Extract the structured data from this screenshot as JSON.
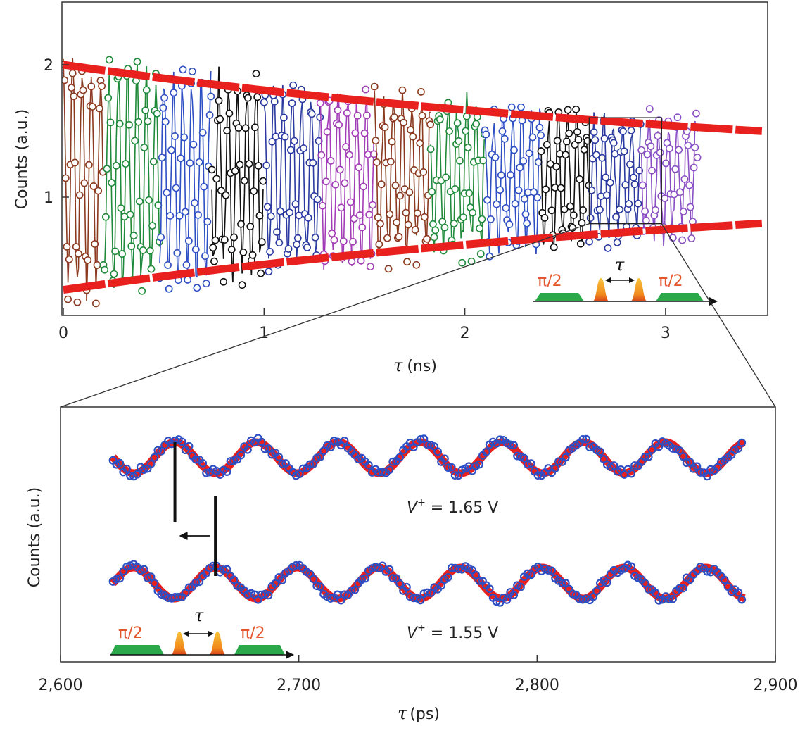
{
  "chart_data": [
    {
      "type": "scatter",
      "panel": "top",
      "xlabel_symbol": "τ",
      "xlabel_unit": "(ns)",
      "ylabel": "Counts (a.u.)",
      "xlim": [
        0,
        3.5
      ],
      "ylim": [
        0,
        2.5
      ],
      "x_ticks": [
        0,
        1,
        2,
        3
      ],
      "x_tick_labels": [
        "0",
        "1",
        "2",
        "3"
      ],
      "y_ticks": [
        1,
        2
      ],
      "y_tick_labels": [
        "1",
        "2"
      ],
      "envelope": {
        "color": "#e8201e",
        "center": 1.15,
        "amplitude_start": 0.85,
        "decay_ns": 3.9,
        "x_range": [
          0,
          3.5
        ]
      },
      "oscillation": {
        "period_ns": 0.0465
      },
      "segments": [
        {
          "x_start": 0.0,
          "x_end": 0.2,
          "color": "#8b3a1f"
        },
        {
          "x_start": 0.2,
          "x_end": 0.48,
          "color": "#1e8a3a"
        },
        {
          "x_start": 0.48,
          "x_end": 0.74,
          "color": "#2e4fc4"
        },
        {
          "x_start": 0.74,
          "x_end": 1.0,
          "color": "#111111"
        },
        {
          "x_start": 1.0,
          "x_end": 1.28,
          "color": "#2b3aa0"
        },
        {
          "x_start": 1.28,
          "x_end": 1.55,
          "color": "#a33db7"
        },
        {
          "x_start": 1.55,
          "x_end": 1.83,
          "color": "#8b3a1f"
        },
        {
          "x_start": 1.83,
          "x_end": 2.1,
          "color": "#1e8a3a"
        },
        {
          "x_start": 2.1,
          "x_end": 2.38,
          "color": "#2e4fc4"
        },
        {
          "x_start": 2.38,
          "x_end": 2.62,
          "color": "#111111"
        },
        {
          "x_start": 2.62,
          "x_end": 2.88,
          "color": "#2b3aa0"
        },
        {
          "x_start": 2.88,
          "x_end": 3.16,
          "color": "#8a4fc4"
        }
      ],
      "zoom_box": {
        "x": [
          2.62,
          2.98
        ],
        "y": [
          0.8,
          1.6
        ]
      },
      "inset_pulse": {
        "left_label": "π/2",
        "right_label": "π/2",
        "tau_label": "τ"
      }
    },
    {
      "type": "line",
      "panel": "bottom",
      "xlabel_symbol": "τ",
      "xlabel_unit": "(ps)",
      "ylabel": "Counts (a.u.)",
      "xlim": [
        2600,
        2900
      ],
      "x_ticks": [
        2600,
        2700,
        2800,
        2900
      ],
      "x_tick_labels": [
        "2,600",
        "2,700",
        "2,800",
        "2,900"
      ],
      "x_range": [
        2622,
        2887
      ],
      "period_ps": 34.3,
      "series": [
        {
          "name": "V⁺ = 1.65 V",
          "label_prefix": "V",
          "label_sup": "+",
          "label_suffix": " = 1.65 V",
          "phase_peak_ps": 2648,
          "fit_color": "#e8201e",
          "point_color": "#2e4fc4"
        },
        {
          "name": "V⁺ = 1.55 V",
          "label_prefix": "V",
          "label_sup": "+",
          "label_suffix": " = 1.55 V",
          "phase_peak_ps": 2665,
          "fit_color": "#e8201e",
          "point_color": "#2e4fc4"
        }
      ],
      "phase_markers": [
        2648,
        2665
      ],
      "inset_pulse": {
        "left_label": "π/2",
        "right_label": "π/2",
        "tau_label": "τ"
      }
    }
  ],
  "colors": {
    "envelope": "#e8201e",
    "pulse_green": "#2aa84a",
    "pulse_orange": "#f0a020",
    "pulse_label": "#e4572e",
    "axis": "#222222"
  }
}
